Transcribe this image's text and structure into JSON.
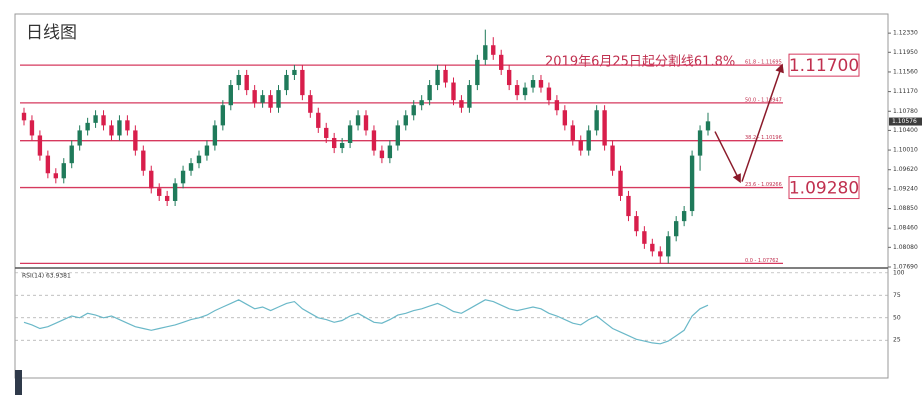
{
  "chart_data": {
    "type": "candlestick",
    "title": "日线图",
    "annotation": "2019年6月25日起分割线61.8%",
    "price_boxes": [
      "1.11700",
      "1.09280"
    ],
    "up_color": "#1f7a5a",
    "down_color": "#d81e4b",
    "fib_color": "#d6395e",
    "ylim": [
      1.0767,
      1.1269
    ],
    "yticks": [
      {
        "value": 1.1233,
        "label": "1.12330"
      },
      {
        "value": 1.1195,
        "label": "1.11950"
      },
      {
        "value": 1.1156,
        "label": "1.11560"
      },
      {
        "value": 1.1117,
        "label": "1.11170"
      },
      {
        "value": 1.1078,
        "label": "1.10780"
      },
      {
        "value": 1.104,
        "label": "1.10400"
      },
      {
        "value": 1.1001,
        "label": "1.10010"
      },
      {
        "value": 1.0962,
        "label": "1.09620"
      },
      {
        "value": 1.0924,
        "label": "1.09240"
      },
      {
        "value": 1.0885,
        "label": "1.08850"
      },
      {
        "value": 1.0846,
        "label": "1.08460"
      },
      {
        "value": 1.0808,
        "label": "1.08080"
      },
      {
        "value": 1.0769,
        "label": "1.07690"
      }
    ],
    "last_price": 1.10576,
    "fib_levels": [
      {
        "label": "61.8 - 1.11695",
        "value": 1.11695
      },
      {
        "label": "50.0 - 1.10947",
        "value": 1.10947
      },
      {
        "label": "38.2 - 1.10196",
        "value": 1.10196
      },
      {
        "label": "23.6 - 1.09266",
        "value": 1.09266
      },
      {
        "label": "0.0 - 1.07762",
        "value": 1.07762
      }
    ],
    "ohlc": [
      [
        1.1075,
        1.1085,
        1.105,
        1.106
      ],
      [
        1.106,
        1.107,
        1.102,
        1.103
      ],
      [
        1.103,
        1.104,
        1.098,
        1.099
      ],
      [
        1.099,
        1.1,
        1.0945,
        1.0955
      ],
      [
        1.0955,
        1.0965,
        1.0935,
        1.0945
      ],
      [
        1.0945,
        1.0985,
        1.0935,
        1.0975
      ],
      [
        1.0975,
        1.102,
        1.0965,
        1.101
      ],
      [
        1.101,
        1.105,
        1.1,
        1.104
      ],
      [
        1.104,
        1.1065,
        1.103,
        1.1055
      ],
      [
        1.1055,
        1.108,
        1.1045,
        1.107
      ],
      [
        1.107,
        1.108,
        1.104,
        1.105
      ],
      [
        1.105,
        1.106,
        1.102,
        1.103
      ],
      [
        1.103,
        1.107,
        1.102,
        1.106
      ],
      [
        1.106,
        1.107,
        1.103,
        1.104
      ],
      [
        1.104,
        1.105,
        1.099,
        1.1
      ],
      [
        1.1,
        1.101,
        1.095,
        1.096
      ],
      [
        1.096,
        1.097,
        1.0915,
        1.0925
      ],
      [
        1.0925,
        1.0935,
        1.09,
        1.091
      ],
      [
        1.091,
        1.092,
        1.089,
        1.09
      ],
      [
        1.09,
        1.0945,
        1.089,
        1.0935
      ],
      [
        1.0935,
        1.097,
        1.0925,
        1.096
      ],
      [
        1.096,
        1.0985,
        1.095,
        1.0975
      ],
      [
        1.0975,
        1.1,
        1.0965,
        1.099
      ],
      [
        1.099,
        1.102,
        1.098,
        1.101
      ],
      [
        1.101,
        1.106,
        1.1,
        1.105
      ],
      [
        1.105,
        1.11,
        1.104,
        1.109
      ],
      [
        1.109,
        1.114,
        1.108,
        1.113
      ],
      [
        1.113,
        1.116,
        1.112,
        1.115
      ],
      [
        1.115,
        1.116,
        1.111,
        1.112
      ],
      [
        1.112,
        1.113,
        1.1085,
        1.1095
      ],
      [
        1.1095,
        1.112,
        1.1085,
        1.111
      ],
      [
        1.111,
        1.112,
        1.1075,
        1.1085
      ],
      [
        1.1085,
        1.113,
        1.1075,
        1.112
      ],
      [
        1.112,
        1.116,
        1.111,
        1.115
      ],
      [
        1.115,
        1.117,
        1.114,
        1.116
      ],
      [
        1.116,
        1.117,
        1.11,
        1.111
      ],
      [
        1.111,
        1.112,
        1.1065,
        1.1075
      ],
      [
        1.1075,
        1.1085,
        1.1035,
        1.1045
      ],
      [
        1.1045,
        1.1055,
        1.1015,
        1.1025
      ],
      [
        1.1025,
        1.1035,
        1.0995,
        1.1005
      ],
      [
        1.1005,
        1.1025,
        1.0995,
        1.1015
      ],
      [
        1.1015,
        1.106,
        1.1005,
        1.105
      ],
      [
        1.105,
        1.108,
        1.104,
        1.107
      ],
      [
        1.107,
        1.108,
        1.103,
        1.104
      ],
      [
        1.104,
        1.105,
        1.099,
        1.1
      ],
      [
        1.1,
        1.101,
        1.0975,
        1.0985
      ],
      [
        1.0985,
        1.102,
        1.0975,
        1.101
      ],
      [
        1.101,
        1.106,
        1.1,
        1.105
      ],
      [
        1.105,
        1.108,
        1.104,
        1.107
      ],
      [
        1.107,
        1.11,
        1.106,
        1.109
      ],
      [
        1.109,
        1.111,
        1.108,
        1.11
      ],
      [
        1.11,
        1.114,
        1.109,
        1.113
      ],
      [
        1.113,
        1.117,
        1.112,
        1.116
      ],
      [
        1.116,
        1.117,
        1.1125,
        1.1135
      ],
      [
        1.1135,
        1.1145,
        1.109,
        1.11
      ],
      [
        1.11,
        1.111,
        1.1075,
        1.1085
      ],
      [
        1.1085,
        1.114,
        1.1075,
        1.113
      ],
      [
        1.113,
        1.119,
        1.112,
        1.118
      ],
      [
        1.118,
        1.124,
        1.117,
        1.1209
      ],
      [
        1.1209,
        1.1225,
        1.118,
        1.119
      ],
      [
        1.119,
        1.12,
        1.115,
        1.116
      ],
      [
        1.116,
        1.117,
        1.112,
        1.113
      ],
      [
        1.113,
        1.114,
        1.11,
        1.111
      ],
      [
        1.111,
        1.1135,
        1.11,
        1.1125
      ],
      [
        1.1125,
        1.115,
        1.1115,
        1.114
      ],
      [
        1.114,
        1.115,
        1.1115,
        1.1125
      ],
      [
        1.1125,
        1.1135,
        1.109,
        1.11
      ],
      [
        1.11,
        1.111,
        1.107,
        1.108
      ],
      [
        1.108,
        1.109,
        1.104,
        1.105
      ],
      [
        1.105,
        1.106,
        1.101,
        1.102
      ],
      [
        1.102,
        1.103,
        1.099,
        1.1
      ],
      [
        1.1,
        1.105,
        1.099,
        1.104
      ],
      [
        1.104,
        1.109,
        1.103,
        1.108
      ],
      [
        1.108,
        1.109,
        1.1,
        1.101
      ],
      [
        1.101,
        1.102,
        1.095,
        1.096
      ],
      [
        1.096,
        1.097,
        1.09,
        1.091
      ],
      [
        1.091,
        1.092,
        1.086,
        1.087
      ],
      [
        1.087,
        1.088,
        1.083,
        1.084
      ],
      [
        1.084,
        1.085,
        1.0805,
        1.0815
      ],
      [
        1.0815,
        1.0825,
        1.079,
        1.08
      ],
      [
        1.08,
        1.081,
        1.0776,
        1.079
      ],
      [
        1.079,
        1.084,
        1.0776,
        1.083
      ],
      [
        1.083,
        1.087,
        1.082,
        1.086
      ],
      [
        1.086,
        1.089,
        1.085,
        1.088
      ],
      [
        1.088,
        1.1,
        1.087,
        1.099
      ],
      [
        1.099,
        1.105,
        1.096,
        1.104
      ],
      [
        1.104,
        1.1075,
        1.103,
        1.1058
      ]
    ],
    "rsi": {
      "label": "RSI(14) 63.9381",
      "color": "#6ab8c8",
      "ylim": [
        -17,
        102
      ],
      "yticks": [
        25,
        50,
        75,
        100
      ],
      "values": [
        45,
        42,
        38,
        40,
        44,
        48,
        52,
        50,
        55,
        53,
        50,
        52,
        48,
        44,
        40,
        38,
        36,
        38,
        40,
        42,
        45,
        48,
        50,
        53,
        58,
        62,
        66,
        70,
        65,
        60,
        62,
        58,
        62,
        66,
        68,
        60,
        55,
        50,
        48,
        45,
        47,
        52,
        55,
        50,
        45,
        44,
        48,
        53,
        55,
        58,
        60,
        63,
        66,
        62,
        57,
        55,
        60,
        65,
        70,
        68,
        64,
        60,
        58,
        60,
        62,
        60,
        55,
        52,
        48,
        44,
        42,
        48,
        52,
        45,
        38,
        34,
        30,
        26,
        24,
        22,
        21,
        24,
        30,
        36,
        52,
        60,
        63.9381
      ]
    }
  }
}
